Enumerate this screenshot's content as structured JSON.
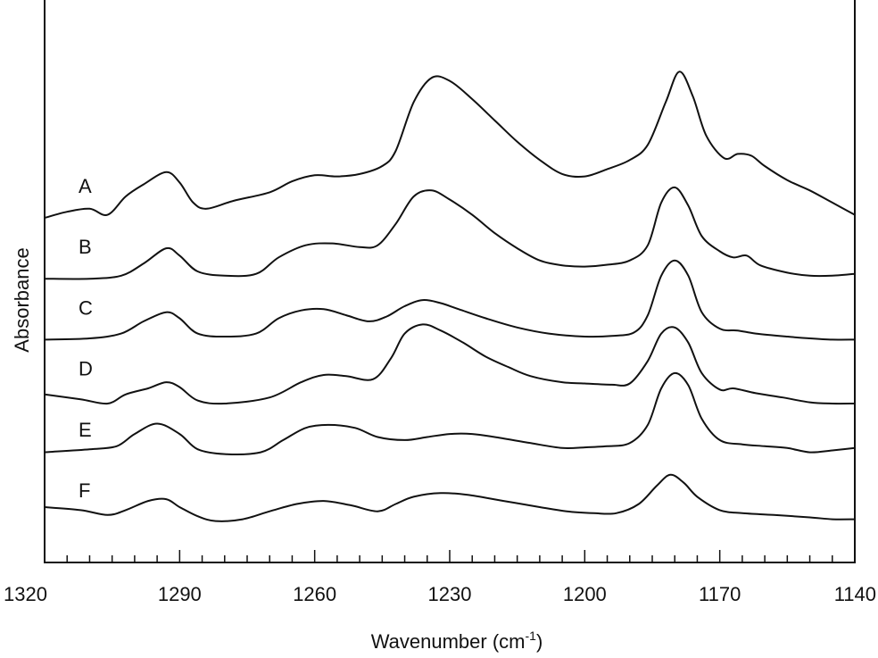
{
  "chart_data": {
    "type": "line",
    "title": "",
    "xlabel": "Wavenumber (cm",
    "xlabel_sup": "-1",
    "xlabel_close": ")",
    "ylabel": "Absorbance",
    "xlim": [
      1320,
      1140
    ],
    "x_reversed": true,
    "x_ticks": [
      1320,
      1290,
      1260,
      1230,
      1200,
      1170,
      1140
    ],
    "x_minor_step": 5,
    "y_units": "arbitrary (stacked traces, offset vertically)",
    "grid": false,
    "legend": "none",
    "series": [
      {
        "name": "A",
        "offset": 5.0,
        "points": [
          [
            1320,
            0.0
          ],
          [
            1315,
            0.1
          ],
          [
            1310,
            0.15
          ],
          [
            1306,
            0.05
          ],
          [
            1302,
            0.35
          ],
          [
            1298,
            0.55
          ],
          [
            1293,
            0.75
          ],
          [
            1290,
            0.58
          ],
          [
            1287,
            0.25
          ],
          [
            1284,
            0.15
          ],
          [
            1278,
            0.28
          ],
          [
            1270,
            0.42
          ],
          [
            1265,
            0.6
          ],
          [
            1260,
            0.7
          ],
          [
            1255,
            0.68
          ],
          [
            1250,
            0.72
          ],
          [
            1245,
            0.85
          ],
          [
            1242,
            1.1
          ],
          [
            1238,
            1.9
          ],
          [
            1234,
            2.3
          ],
          [
            1230,
            2.25
          ],
          [
            1225,
            1.95
          ],
          [
            1220,
            1.6
          ],
          [
            1215,
            1.25
          ],
          [
            1210,
            0.95
          ],
          [
            1205,
            0.72
          ],
          [
            1200,
            0.68
          ],
          [
            1195,
            0.8
          ],
          [
            1190,
            0.95
          ],
          [
            1186,
            1.2
          ],
          [
            1182,
            1.9
          ],
          [
            1179,
            2.4
          ],
          [
            1176,
            2.0
          ],
          [
            1173,
            1.35
          ],
          [
            1169,
            0.98
          ],
          [
            1166,
            1.05
          ],
          [
            1163,
            1.02
          ],
          [
            1160,
            0.85
          ],
          [
            1155,
            0.62
          ],
          [
            1150,
            0.45
          ],
          [
            1145,
            0.25
          ],
          [
            1140,
            0.05
          ]
        ]
      },
      {
        "name": "B",
        "offset": 4.0,
        "points": [
          [
            1320,
            0.0
          ],
          [
            1310,
            0.0
          ],
          [
            1303,
            0.05
          ],
          [
            1298,
            0.25
          ],
          [
            1293,
            0.5
          ],
          [
            1290,
            0.38
          ],
          [
            1286,
            0.12
          ],
          [
            1280,
            0.05
          ],
          [
            1273,
            0.08
          ],
          [
            1268,
            0.35
          ],
          [
            1262,
            0.55
          ],
          [
            1256,
            0.58
          ],
          [
            1250,
            0.52
          ],
          [
            1246,
            0.55
          ],
          [
            1242,
            0.9
          ],
          [
            1238,
            1.35
          ],
          [
            1234,
            1.45
          ],
          [
            1230,
            1.3
          ],
          [
            1225,
            1.05
          ],
          [
            1220,
            0.75
          ],
          [
            1215,
            0.5
          ],
          [
            1210,
            0.3
          ],
          [
            1205,
            0.22
          ],
          [
            1200,
            0.2
          ],
          [
            1195,
            0.23
          ],
          [
            1190,
            0.3
          ],
          [
            1186,
            0.55
          ],
          [
            1183,
            1.25
          ],
          [
            1180,
            1.5
          ],
          [
            1177,
            1.2
          ],
          [
            1174,
            0.7
          ],
          [
            1170,
            0.45
          ],
          [
            1167,
            0.35
          ],
          [
            1164,
            0.38
          ],
          [
            1161,
            0.22
          ],
          [
            1155,
            0.1
          ],
          [
            1150,
            0.05
          ],
          [
            1145,
            0.05
          ],
          [
            1140,
            0.08
          ]
        ]
      },
      {
        "name": "C",
        "offset": 3.0,
        "points": [
          [
            1320,
            0.0
          ],
          [
            1310,
            0.02
          ],
          [
            1303,
            0.1
          ],
          [
            1298,
            0.3
          ],
          [
            1293,
            0.45
          ],
          [
            1290,
            0.35
          ],
          [
            1286,
            0.1
          ],
          [
            1280,
            0.05
          ],
          [
            1273,
            0.1
          ],
          [
            1268,
            0.35
          ],
          [
            1263,
            0.48
          ],
          [
            1258,
            0.5
          ],
          [
            1253,
            0.4
          ],
          [
            1248,
            0.3
          ],
          [
            1244,
            0.38
          ],
          [
            1240,
            0.55
          ],
          [
            1236,
            0.65
          ],
          [
            1232,
            0.6
          ],
          [
            1228,
            0.5
          ],
          [
            1222,
            0.35
          ],
          [
            1215,
            0.2
          ],
          [
            1208,
            0.1
          ],
          [
            1200,
            0.05
          ],
          [
            1194,
            0.06
          ],
          [
            1189,
            0.12
          ],
          [
            1186,
            0.4
          ],
          [
            1183,
            1.05
          ],
          [
            1180,
            1.3
          ],
          [
            1177,
            1.05
          ],
          [
            1174,
            0.45
          ],
          [
            1170,
            0.18
          ],
          [
            1166,
            0.15
          ],
          [
            1162,
            0.1
          ],
          [
            1155,
            0.05
          ],
          [
            1150,
            0.02
          ],
          [
            1145,
            0.0
          ],
          [
            1140,
            0.0
          ]
        ]
      },
      {
        "name": "D",
        "offset": 2.0,
        "points": [
          [
            1320,
            0.1
          ],
          [
            1312,
            0.02
          ],
          [
            1306,
            -0.05
          ],
          [
            1302,
            0.1
          ],
          [
            1297,
            0.2
          ],
          [
            1293,
            0.3
          ],
          [
            1290,
            0.22
          ],
          [
            1286,
            0.0
          ],
          [
            1280,
            -0.05
          ],
          [
            1270,
            0.05
          ],
          [
            1263,
            0.3
          ],
          [
            1258,
            0.42
          ],
          [
            1253,
            0.4
          ],
          [
            1247,
            0.35
          ],
          [
            1243,
            0.7
          ],
          [
            1240,
            1.1
          ],
          [
            1236,
            1.25
          ],
          [
            1232,
            1.15
          ],
          [
            1227,
            0.95
          ],
          [
            1222,
            0.72
          ],
          [
            1217,
            0.55
          ],
          [
            1212,
            0.4
          ],
          [
            1205,
            0.3
          ],
          [
            1200,
            0.28
          ],
          [
            1194,
            0.26
          ],
          [
            1190,
            0.28
          ],
          [
            1186,
            0.65
          ],
          [
            1183,
            1.1
          ],
          [
            1180,
            1.2
          ],
          [
            1177,
            0.95
          ],
          [
            1174,
            0.45
          ],
          [
            1170,
            0.18
          ],
          [
            1167,
            0.2
          ],
          [
            1162,
            0.12
          ],
          [
            1156,
            0.05
          ],
          [
            1150,
            -0.03
          ],
          [
            1145,
            -0.05
          ],
          [
            1140,
            -0.05
          ]
        ]
      },
      {
        "name": "E",
        "offset": 1.0,
        "points": [
          [
            1320,
            0.15
          ],
          [
            1310,
            0.2
          ],
          [
            1304,
            0.25
          ],
          [
            1300,
            0.45
          ],
          [
            1295,
            0.62
          ],
          [
            1290,
            0.45
          ],
          [
            1286,
            0.2
          ],
          [
            1280,
            0.12
          ],
          [
            1272,
            0.15
          ],
          [
            1267,
            0.35
          ],
          [
            1262,
            0.55
          ],
          [
            1257,
            0.6
          ],
          [
            1251,
            0.55
          ],
          [
            1246,
            0.4
          ],
          [
            1240,
            0.35
          ],
          [
            1235,
            0.4
          ],
          [
            1230,
            0.45
          ],
          [
            1225,
            0.45
          ],
          [
            1220,
            0.4
          ],
          [
            1212,
            0.3
          ],
          [
            1205,
            0.22
          ],
          [
            1200,
            0.23
          ],
          [
            1195,
            0.25
          ],
          [
            1190,
            0.3
          ],
          [
            1186,
            0.6
          ],
          [
            1183,
            1.2
          ],
          [
            1180,
            1.45
          ],
          [
            1177,
            1.25
          ],
          [
            1174,
            0.7
          ],
          [
            1170,
            0.35
          ],
          [
            1165,
            0.28
          ],
          [
            1160,
            0.25
          ],
          [
            1155,
            0.22
          ],
          [
            1150,
            0.15
          ],
          [
            1145,
            0.18
          ],
          [
            1140,
            0.22
          ]
        ]
      },
      {
        "name": "F",
        "offset": 0.0,
        "points": [
          [
            1320,
            0.25
          ],
          [
            1312,
            0.2
          ],
          [
            1306,
            0.12
          ],
          [
            1302,
            0.2
          ],
          [
            1297,
            0.35
          ],
          [
            1293,
            0.38
          ],
          [
            1290,
            0.25
          ],
          [
            1286,
            0.1
          ],
          [
            1282,
            0.02
          ],
          [
            1276,
            0.05
          ],
          [
            1270,
            0.18
          ],
          [
            1264,
            0.3
          ],
          [
            1258,
            0.35
          ],
          [
            1252,
            0.28
          ],
          [
            1246,
            0.18
          ],
          [
            1242,
            0.3
          ],
          [
            1238,
            0.42
          ],
          [
            1232,
            0.48
          ],
          [
            1226,
            0.45
          ],
          [
            1218,
            0.35
          ],
          [
            1210,
            0.25
          ],
          [
            1204,
            0.18
          ],
          [
            1198,
            0.15
          ],
          [
            1193,
            0.15
          ],
          [
            1188,
            0.3
          ],
          [
            1184,
            0.6
          ],
          [
            1181,
            0.78
          ],
          [
            1178,
            0.65
          ],
          [
            1175,
            0.42
          ],
          [
            1170,
            0.2
          ],
          [
            1165,
            0.15
          ],
          [
            1158,
            0.12
          ],
          [
            1150,
            0.08
          ],
          [
            1145,
            0.05
          ],
          [
            1140,
            0.05
          ]
        ]
      }
    ]
  }
}
